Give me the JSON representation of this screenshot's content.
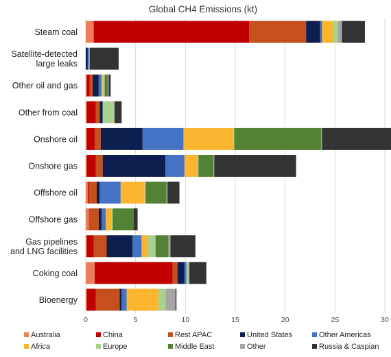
{
  "chart_data": {
    "type": "bar",
    "orientation": "horizontal",
    "stacked": true,
    "title": "Global CH4 Emissions (kt)",
    "xlabel": "",
    "ylabel": "",
    "xlim": [
      0,
      30
    ],
    "xticks": [
      0,
      5,
      10,
      15,
      20,
      25,
      30
    ],
    "grid": true,
    "legend_position": "bottom",
    "categories": [
      "Steam coal",
      "Satellite-detected large leaks",
      "Other oil and gas",
      "Other from coal",
      "Onshore oil",
      "Onshore gas",
      "Offshore oil",
      "Offshore gas",
      "Gas pipelines and LNG facilities",
      "Coking coal",
      "Bioenergy"
    ],
    "category_lines": [
      [
        "Steam coal"
      ],
      [
        "Satellite-detected",
        "large leaks"
      ],
      [
        "Other oil and gas"
      ],
      [
        "Other from coal"
      ],
      [
        "Onshore oil"
      ],
      [
        "Onshore gas"
      ],
      [
        "Offshore oil"
      ],
      [
        "Offshore gas"
      ],
      [
        "Gas pipelines",
        "and LNG facilities"
      ],
      [
        "Coking coal"
      ],
      [
        "Bioenergy"
      ]
    ],
    "series": [
      {
        "name": "Australia",
        "color": "#ed7d5a",
        "values": [
          0.8,
          0.0,
          0.1,
          0.1,
          0.1,
          0.1,
          0.2,
          0.3,
          0.1,
          0.9,
          0.1
        ]
      },
      {
        "name": "China",
        "color": "#c00000",
        "values": [
          15.6,
          0.0,
          0.3,
          0.9,
          0.8,
          0.9,
          0.1,
          0.0,
          0.7,
          7.8,
          0.9
        ]
      },
      {
        "name": "Rest APAC",
        "color": "#c5501e",
        "values": [
          5.7,
          0.0,
          0.3,
          0.4,
          0.6,
          0.7,
          0.8,
          1.0,
          1.3,
          0.5,
          2.4
        ]
      },
      {
        "name": "United States",
        "color": "#0d1f4e",
        "values": [
          1.4,
          0.2,
          0.6,
          0.3,
          4.2,
          6.3,
          0.3,
          0.3,
          2.6,
          0.7,
          0.2
        ]
      },
      {
        "name": "Other Americas",
        "color": "#4472c4",
        "values": [
          0.2,
          0.1,
          0.3,
          0.0,
          4.1,
          1.9,
          2.1,
          0.4,
          0.9,
          0.2,
          0.5
        ]
      },
      {
        "name": "Africa",
        "color": "#fbb52f",
        "values": [
          1.1,
          0.0,
          0.1,
          0.0,
          5.0,
          1.3,
          2.4,
          0.6,
          0.6,
          0.0,
          3.2
        ]
      },
      {
        "name": "Europe",
        "color": "#a9d18e",
        "values": [
          0.5,
          0.0,
          0.2,
          1.1,
          0.1,
          0.1,
          0.1,
          0.1,
          0.8,
          0.2,
          0.7
        ]
      },
      {
        "name": "Middle East",
        "color": "#548235",
        "values": [
          0.0,
          0.0,
          0.3,
          0.0,
          8.7,
          1.5,
          2.1,
          2.1,
          1.3,
          0.0,
          0.0
        ]
      },
      {
        "name": "Other",
        "color": "#a5a5a5",
        "values": [
          0.4,
          0.1,
          0.1,
          0.1,
          0.1,
          0.1,
          0.1,
          0.0,
          0.2,
          0.1,
          1.0
        ]
      },
      {
        "name": "Russia & Caspian",
        "color": "#333333",
        "values": [
          2.3,
          2.9,
          0.2,
          0.7,
          7.3,
          8.2,
          1.2,
          0.4,
          2.5,
          1.7,
          0.1
        ]
      }
    ]
  }
}
